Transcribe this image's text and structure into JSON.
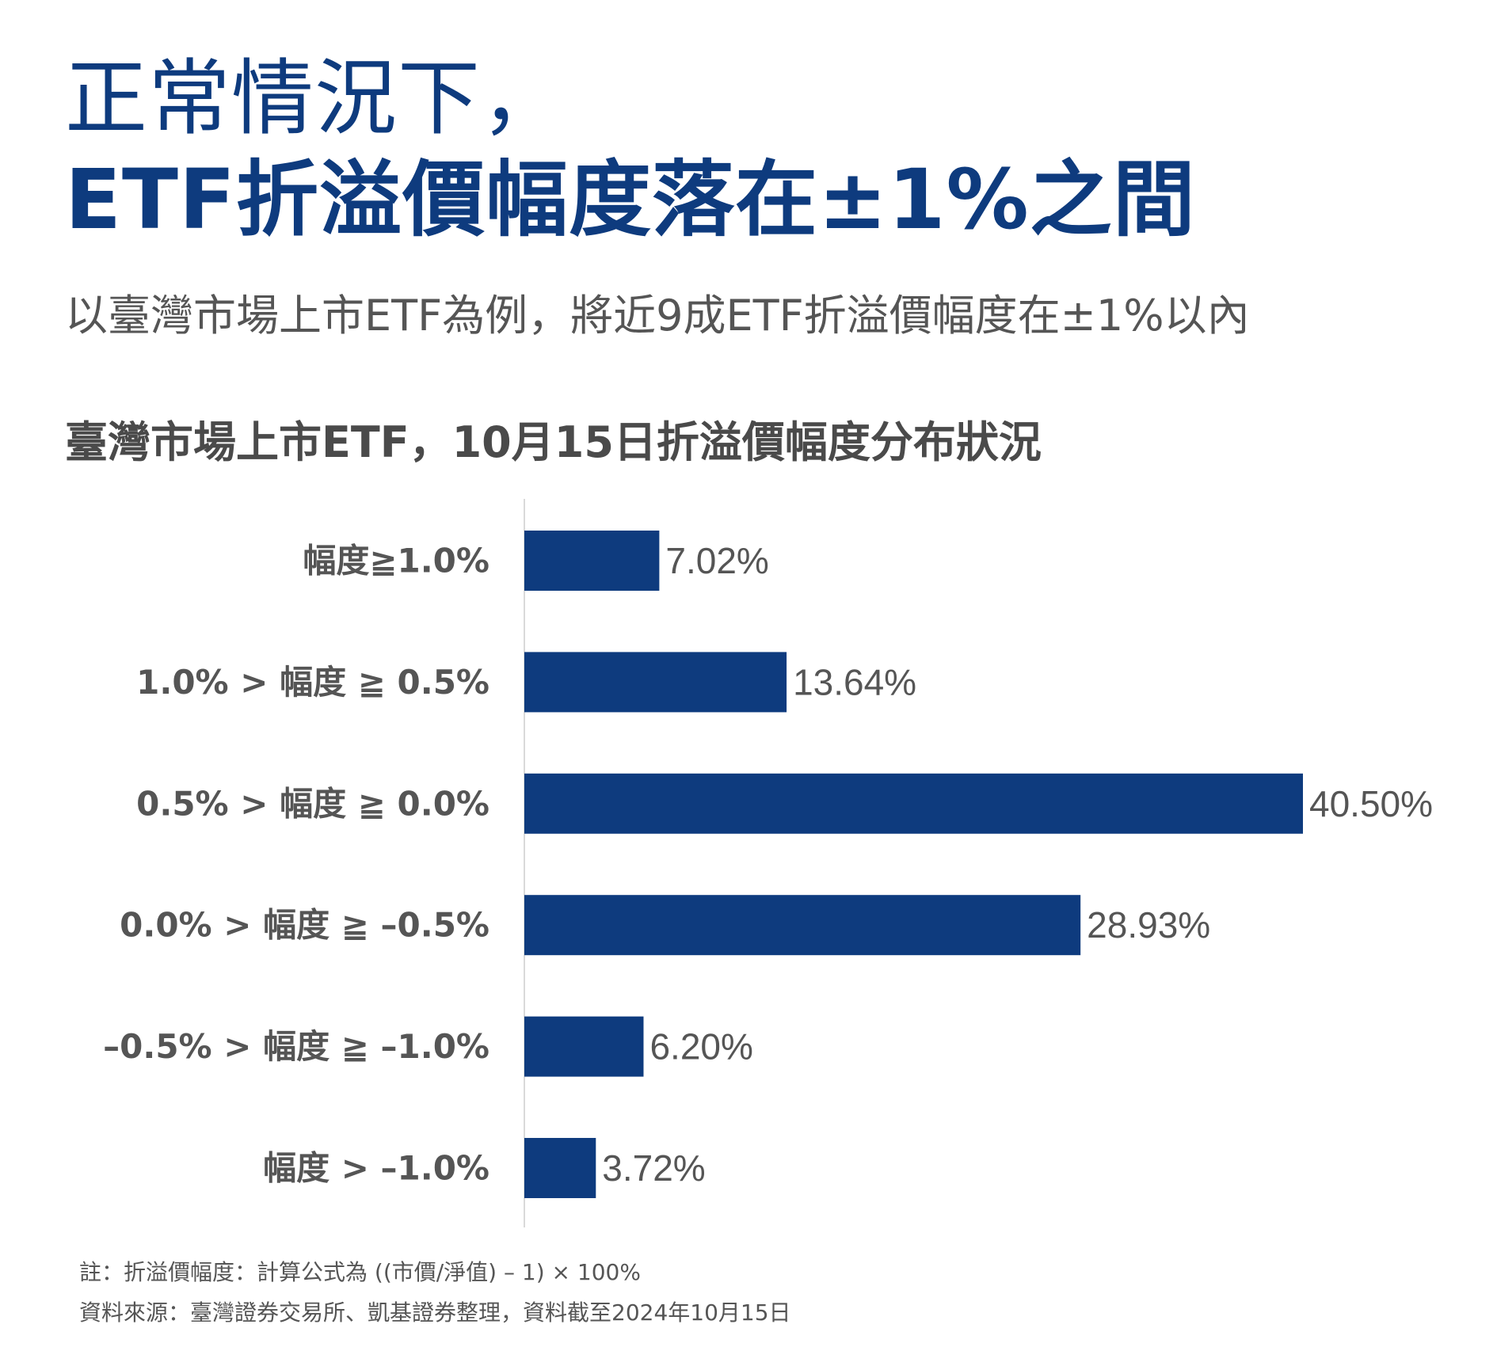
{
  "header": {
    "title_line1": "正常情況下，",
    "title_line2": "ETF折溢價幅度落在±1%之間",
    "subtitle": "以臺灣市場上市ETF為例，將近9成ETF折溢價幅度在±1%以內"
  },
  "chart_data": {
    "type": "bar",
    "orientation": "horizontal",
    "title": "臺灣市場上市ETF，10月15日折溢價幅度分布狀況",
    "categories": [
      "幅度≧1.0%",
      "1.0% >  幅度 ≧ 0.5%",
      "0.5% > 幅度 ≧ 0.0%",
      "0.0% > 幅度 ≧ –0.5%",
      "–0.5% > 幅度 ≧ –1.0%",
      "幅度 > –1.0%"
    ],
    "values": [
      7.02,
      13.64,
      40.5,
      28.93,
      6.2,
      3.72
    ],
    "value_labels": [
      "7.02%",
      "13.64%",
      "40.50%",
      "28.93%",
      "6.20%",
      "3.72%"
    ],
    "bar_color": "#0e3b7e",
    "xlim": [
      0,
      45
    ]
  },
  "notes": {
    "formula": "註：折溢價幅度：計算公式為 ((市價/淨值) – 1) × 100%",
    "source": "資料來源：臺灣證券交易所、凱基證券整理，資料截至2024年10月15日"
  }
}
